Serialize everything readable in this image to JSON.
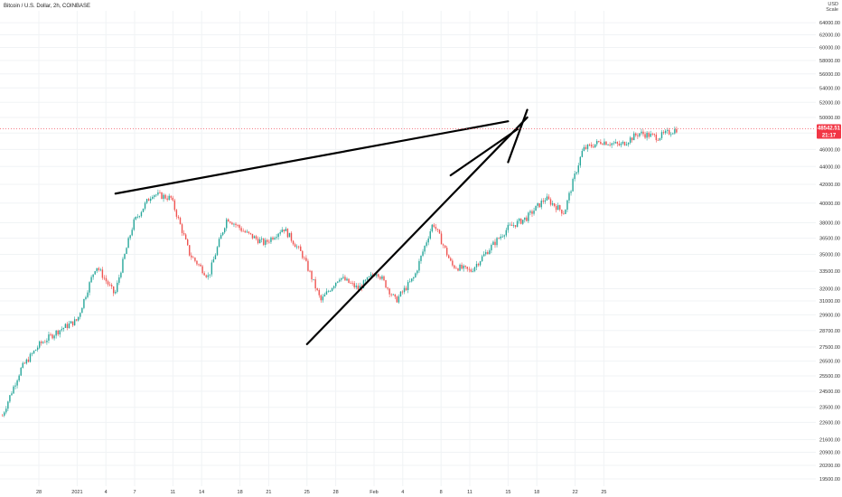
{
  "header": {
    "title": "Bitcoin / U.S. Dollar, 2h, COINBASE"
  },
  "axis_currency": {
    "currency": "USD",
    "secondary": "Scale",
    "unit_note": "Per"
  },
  "price_tag": {
    "last_price": "48542.51",
    "countdown": "21:17",
    "color": "#f23645"
  },
  "colors": {
    "up": "#26a69a",
    "down": "#ef5350",
    "grid": "#f0f3f5",
    "trendline": "#000000",
    "price_line": "#f23645"
  },
  "chart_data": {
    "type": "candlestick",
    "title": "Bitcoin / U.S. Dollar, 2h, COINBASE",
    "y_axis_scale": "log",
    "ylim": [
      19500,
      66000
    ],
    "y_ticks": [
      "64000.00",
      "62000.00",
      "60000.00",
      "58000.00",
      "56000.00",
      "54000.00",
      "52000.00",
      "50000.00",
      "48000.00",
      "46000.00",
      "44000.00",
      "42000.00",
      "40000.00",
      "38000.00",
      "36500.00",
      "35000.00",
      "33500.00",
      "32000.00",
      "31000.00",
      "29900.00",
      "28700.00",
      "27500.00",
      "26500.00",
      "25500.00",
      "24500.00",
      "23500.00",
      "22600.00",
      "21600.00",
      "20900.00",
      "20200.00",
      "19500.00"
    ],
    "x_ticks": [
      "28",
      "2021",
      "4",
      "7",
      "11",
      "14",
      "18",
      "21",
      "25",
      "28",
      "Feb",
      "4",
      "8",
      "11",
      "15",
      "18",
      "22",
      "25"
    ],
    "approx_price_path": [
      {
        "t": 0,
        "price": 23000
      },
      {
        "t": 1,
        "price": 26000
      },
      {
        "t": 2,
        "price": 27700
      },
      {
        "t": 3,
        "price": 28700
      },
      {
        "t": 4,
        "price": 29500
      },
      {
        "t": 5,
        "price": 34000
      },
      {
        "t": 6,
        "price": 31500
      },
      {
        "t": 7,
        "price": 38000
      },
      {
        "t": 8,
        "price": 41000
      },
      {
        "t": 9,
        "price": 40500
      },
      {
        "t": 10,
        "price": 35000
      },
      {
        "t": 11,
        "price": 33000
      },
      {
        "t": 12,
        "price": 38500
      },
      {
        "t": 13,
        "price": 37000
      },
      {
        "t": 14,
        "price": 36000
      },
      {
        "t": 15,
        "price": 37500
      },
      {
        "t": 16,
        "price": 35000
      },
      {
        "t": 17,
        "price": 31000
      },
      {
        "t": 18,
        "price": 33000
      },
      {
        "t": 19,
        "price": 32000
      },
      {
        "t": 20,
        "price": 33500
      },
      {
        "t": 21,
        "price": 31000
      },
      {
        "t": 22,
        "price": 33000
      },
      {
        "t": 23,
        "price": 38000
      },
      {
        "t": 24,
        "price": 34000
      },
      {
        "t": 25,
        "price": 33500
      },
      {
        "t": 26,
        "price": 35500
      },
      {
        "t": 27,
        "price": 37500
      },
      {
        "t": 28,
        "price": 38500
      },
      {
        "t": 29,
        "price": 40500
      },
      {
        "t": 30,
        "price": 39000
      },
      {
        "t": 31,
        "price": 46000
      },
      {
        "t": 32,
        "price": 47000
      },
      {
        "t": 33,
        "price": 46500
      },
      {
        "t": 34,
        "price": 48000
      },
      {
        "t": 35,
        "price": 47500
      },
      {
        "t": 36,
        "price": 48500
      }
    ],
    "trendlines": [
      {
        "from": {
          "date": "Jan 5",
          "price": 41000
        },
        "to": {
          "date": "Feb 15",
          "price": 49500
        }
      },
      {
        "from": {
          "date": "Jan 25",
          "price": 27700
        },
        "to": {
          "date": "Feb 17",
          "price": 50000
        }
      },
      {
        "from": {
          "date": "Feb 9",
          "price": 43000
        },
        "to": {
          "date": "Feb 16",
          "price": 48500
        }
      },
      {
        "from": {
          "date": "Feb 15",
          "price": 44500
        },
        "to": {
          "date": "Feb 17",
          "price": 51000
        }
      }
    ]
  }
}
